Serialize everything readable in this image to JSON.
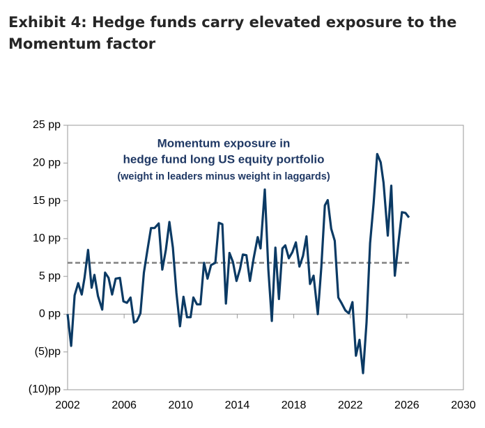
{
  "chart_data": {
    "type": "line",
    "title_lines": [
      "Exhibit 4: Hedge funds carry elevated exposure to the",
      "Momentum factor"
    ],
    "annotation_lines": [
      "Momentum exposure in",
      "hedge fund long US equity portfolio",
      "(weight in leaders minus weight in laggards)"
    ],
    "xlim": [
      2002,
      2030
    ],
    "xticks": [
      2002,
      2006,
      2010,
      2014,
      2018,
      2022,
      2026,
      2030
    ],
    "ylim": [
      -10,
      25
    ],
    "yticks": [
      {
        "value": -10,
        "label": "(10)pp"
      },
      {
        "value": -5,
        "label": "(5)pp"
      },
      {
        "value": 0,
        "label": "0 pp"
      },
      {
        "value": 5,
        "label": "5 pp"
      },
      {
        "value": 10,
        "label": "10 pp"
      },
      {
        "value": 15,
        "label": "15 pp"
      },
      {
        "value": 20,
        "label": "20 pp"
      },
      {
        "value": 25,
        "label": "25 pp"
      }
    ],
    "reference_value": 6.8,
    "reference_color": "#808080",
    "series": [
      {
        "color": "#0b3a64",
        "x": [
          2002.0,
          2002.25,
          2002.5,
          2002.75,
          2003.0,
          2003.2,
          2003.45,
          2003.7,
          2003.9,
          2004.15,
          2004.45,
          2004.65,
          2004.9,
          2005.15,
          2005.4,
          2005.7,
          2005.95,
          2006.2,
          2006.45,
          2006.7,
          2006.9,
          2007.15,
          2007.4,
          2007.65,
          2007.9,
          2008.15,
          2008.45,
          2008.7,
          2008.95,
          2009.2,
          2009.45,
          2009.7,
          2009.95,
          2010.2,
          2010.45,
          2010.7,
          2010.9,
          2011.15,
          2011.4,
          2011.65,
          2011.9,
          2012.15,
          2012.45,
          2012.7,
          2012.95,
          2013.2,
          2013.45,
          2013.7,
          2013.95,
          2014.2,
          2014.4,
          2014.65,
          2014.9,
          2015.15,
          2015.45,
          2015.65,
          2015.95,
          2016.2,
          2016.45,
          2016.7,
          2016.95,
          2017.2,
          2017.4,
          2017.65,
          2017.9,
          2018.15,
          2018.4,
          2018.65,
          2018.9,
          2019.15,
          2019.4,
          2019.7,
          2019.95,
          2020.2,
          2020.4,
          2020.65,
          2020.9,
          2021.15,
          2021.4,
          2021.65,
          2021.9,
          2022.15,
          2022.4,
          2022.65,
          2022.9,
          2023.15,
          2023.4,
          2023.65,
          2023.9,
          2024.15,
          2024.35,
          2024.65,
          2024.9,
          2025.15,
          2025.4,
          2025.65,
          2025.9,
          2026.15
        ],
        "values": [
          0,
          -4.2,
          2.5,
          4.1,
          2.6,
          4.8,
          8.5,
          3.5,
          5.2,
          2.4,
          0.6,
          5.5,
          4.8,
          2.6,
          4.7,
          4.8,
          1.7,
          1.5,
          2.2,
          -1.1,
          -0.9,
          0.1,
          5.5,
          8.5,
          11.4,
          11.4,
          12,
          5.9,
          8.5,
          12.2,
          8.8,
          2.8,
          -1.6,
          2.3,
          -0.4,
          -0.4,
          2.2,
          1.3,
          1.3,
          6.8,
          4.7,
          6.5,
          6.8,
          12.1,
          11.9,
          1.4,
          8.1,
          6.9,
          4.4,
          6.0,
          7.9,
          7.8,
          4.4,
          7.3,
          10.2,
          8.7,
          16.5,
          5.9,
          -0.9,
          8.8,
          2.0,
          8.7,
          9.1,
          7.4,
          8.2,
          9.5,
          6.3,
          7.7,
          10.3,
          4.0,
          5.1,
          0,
          6.2,
          14.4,
          15.1,
          11.3,
          9.7,
          2.2,
          1.4,
          0.5,
          0.1,
          1.6,
          -5.5,
          -3.4,
          -7.8,
          -1.1,
          9.4,
          14.7,
          21.2,
          20.1,
          17.4,
          10.4,
          17.0,
          5.1,
          9.4,
          13.5,
          13.4,
          12.8
        ]
      }
    ]
  }
}
